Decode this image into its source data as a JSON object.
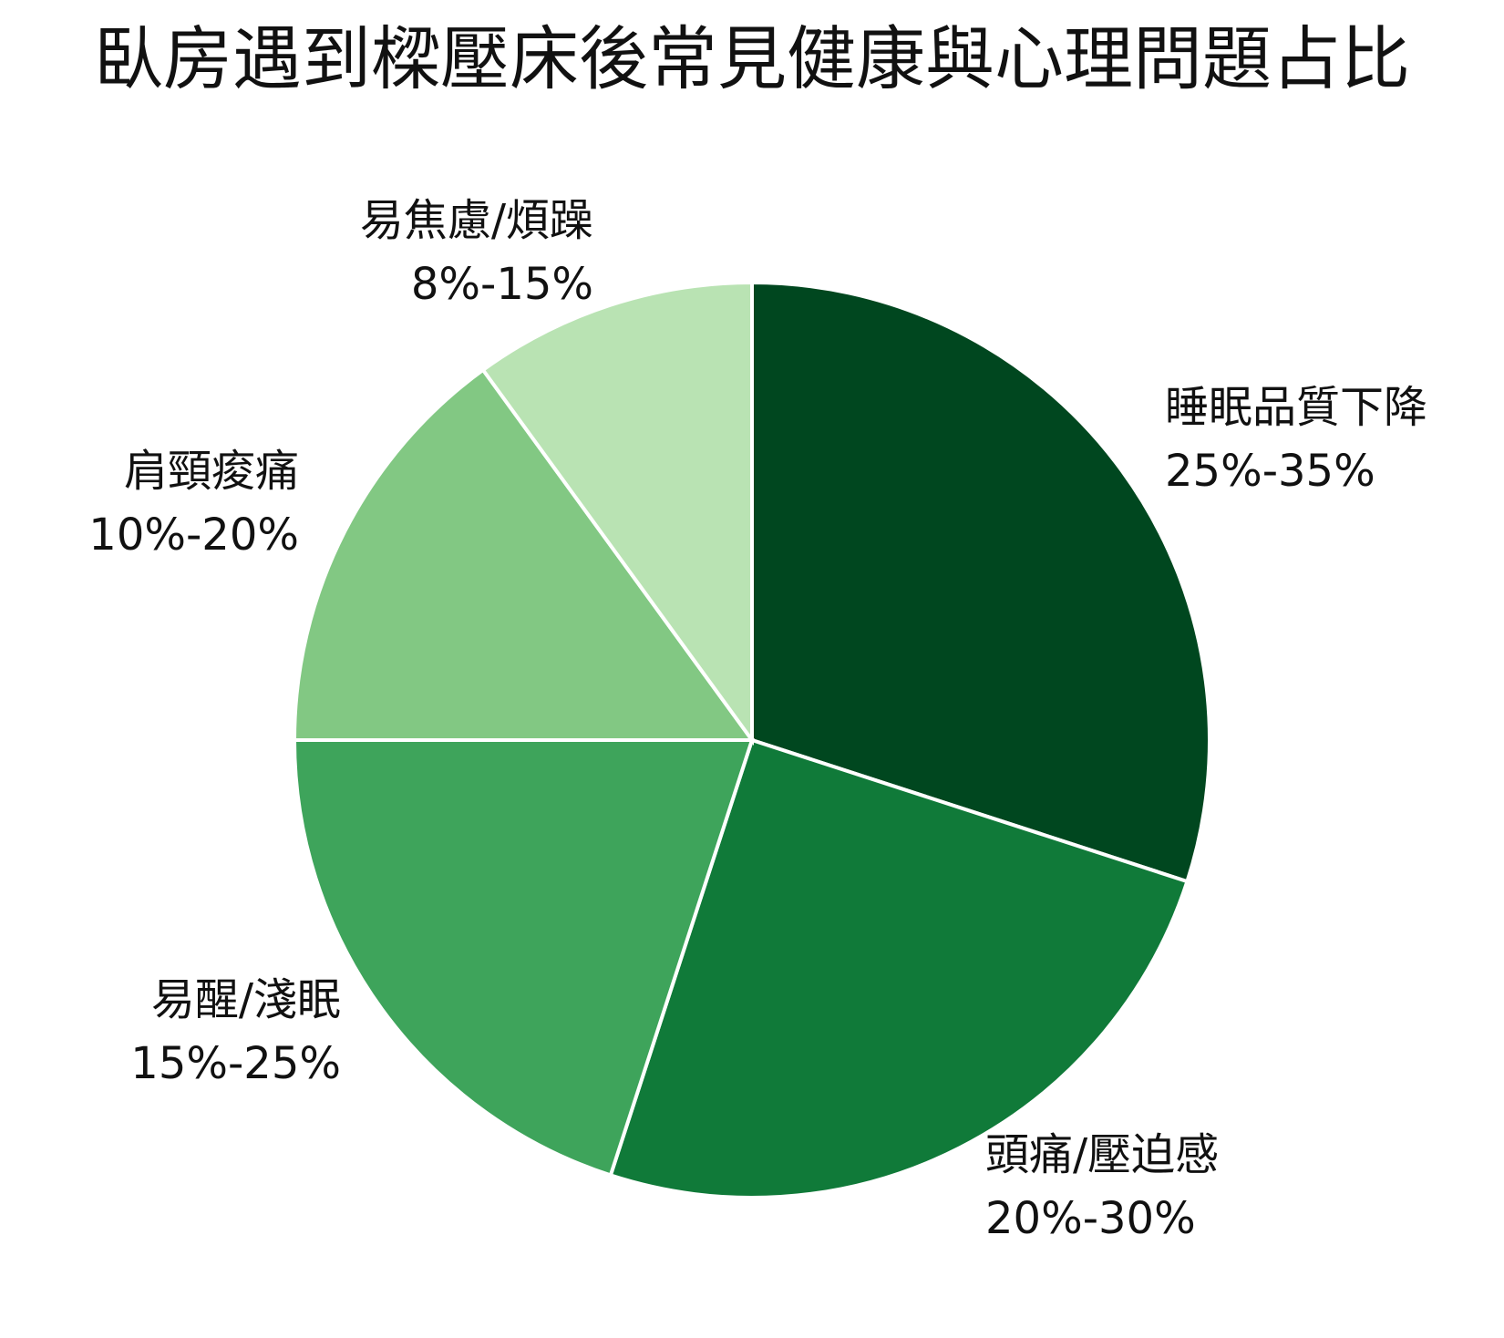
{
  "chart_data": {
    "type": "pie",
    "title": "臥房遇到樑壓床後常見健康與心理問題占比",
    "categories": [
      "睡眠品質下降",
      "頭痛/壓迫感",
      "易醒/淺眠",
      "肩頸痠痛",
      "易焦慮/煩躁"
    ],
    "values": [
      30,
      25,
      20,
      15,
      10
    ],
    "value_labels": [
      "25%-35%",
      "20%-30%",
      "15%-25%",
      "10%-20%",
      "8%-15%"
    ],
    "colors": [
      "#00471f",
      "#107a39",
      "#3ea45b",
      "#82c883",
      "#b9e3b3"
    ]
  }
}
